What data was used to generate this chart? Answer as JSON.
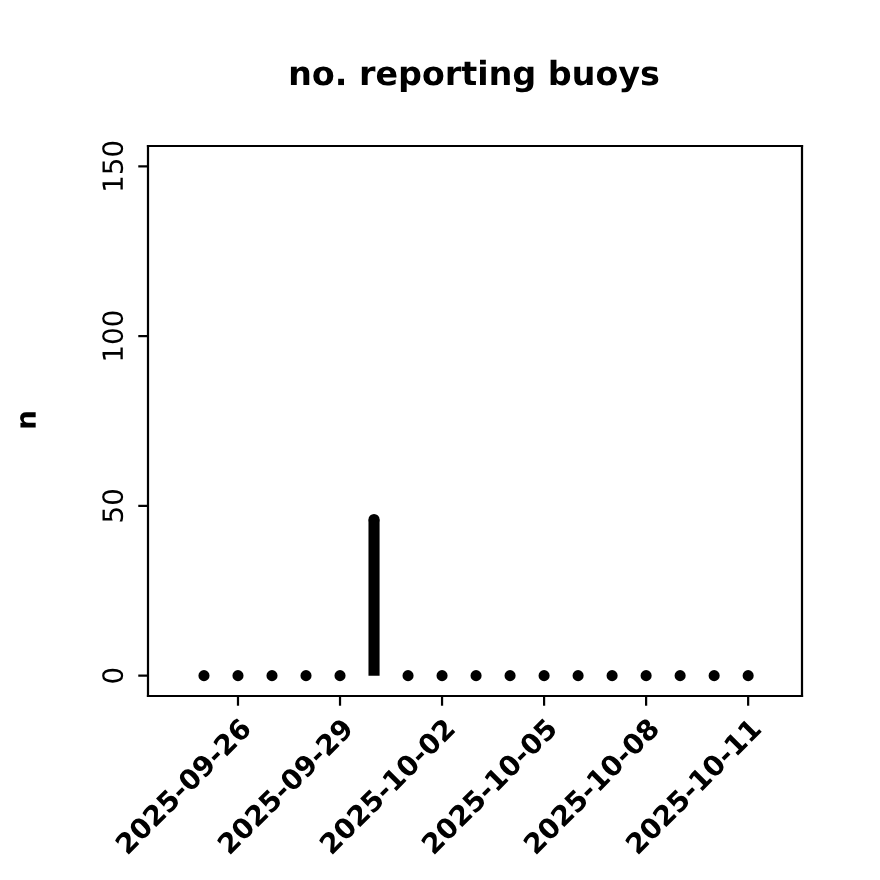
{
  "chart_data": {
    "type": "lollipop",
    "title": "no. reporting buoys",
    "ylabel": "n",
    "x": [
      "2025-09-25",
      "2025-09-26",
      "2025-09-27",
      "2025-09-28",
      "2025-09-29",
      "2025-09-30",
      "2025-10-01",
      "2025-10-02",
      "2025-10-03",
      "2025-10-04",
      "2025-10-05",
      "2025-10-06",
      "2025-10-07",
      "2025-10-08",
      "2025-10-09",
      "2025-10-10",
      "2025-10-11"
    ],
    "series": [
      {
        "color": "#000000",
        "values": [
          0,
          0,
          0,
          0,
          0,
          46,
          0,
          0,
          0,
          0,
          0,
          0,
          0,
          0,
          0,
          0,
          0
        ]
      }
    ],
    "marker": "circle",
    "xlim": [
      "2025-09-23T08:30",
      "2025-10-12T14:00"
    ],
    "xticks": [
      {
        "value": "2025-09-26",
        "label": "2025-09-26"
      },
      {
        "value": "2025-09-29",
        "label": "2025-09-29"
      },
      {
        "value": "2025-10-02",
        "label": "2025-10-02"
      },
      {
        "value": "2025-10-05",
        "label": "2025-10-05"
      },
      {
        "value": "2025-10-08",
        "label": "2025-10-08"
      },
      {
        "value": "2025-10-11",
        "label": "2025-10-11"
      }
    ],
    "ylim": [
      -6,
      156
    ],
    "yticks": [
      0,
      50,
      100,
      150
    ],
    "grid": false
  }
}
